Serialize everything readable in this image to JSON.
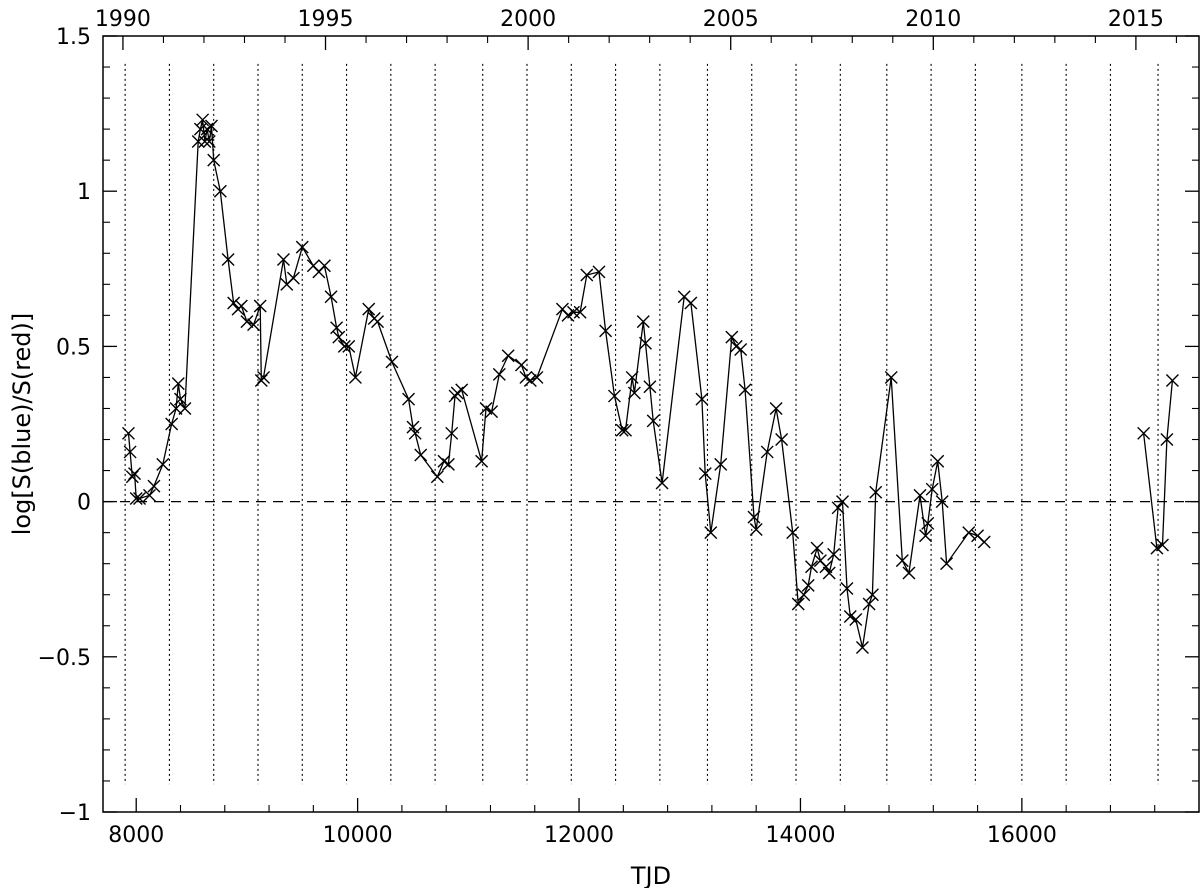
{
  "chart_data": {
    "type": "line",
    "xlabel": "TJD",
    "ylabel": "log[S(blue)/S(red)]",
    "xlim": [
      7700,
      17600
    ],
    "ylim": [
      -1,
      1.5
    ],
    "x_ticks": [
      8000,
      10000,
      12000,
      14000,
      16000
    ],
    "x_tick_labels": [
      "8000",
      "10000",
      "12000",
      "14000",
      "16000"
    ],
    "y_ticks": [
      -1,
      -0.5,
      0,
      0.5,
      1,
      1.5
    ],
    "y_tick_labels": [
      "−1",
      "−0.5",
      "0",
      "0.5",
      "1",
      "1.5"
    ],
    "top_axis": {
      "ticks": [
        7880,
        9710,
        11540,
        13370,
        15200,
        17030
      ],
      "labels": [
        "1990",
        "1995",
        "2000",
        "2005",
        "2010",
        "2015"
      ]
    },
    "reference_line_y": 0,
    "vertical_lines_x": [
      7900,
      8300,
      8700,
      9100,
      9500,
      9900,
      10300,
      10700,
      11130,
      11530,
      11930,
      12330,
      12730,
      13160,
      13560,
      13960,
      14360,
      14780,
      15180,
      15580,
      16000,
      16400,
      16800,
      17230
    ],
    "series": [
      {
        "segments": [
          [
            [
              7930,
              0.22
            ],
            [
              7945,
              0.16
            ],
            [
              7965,
              0.08
            ],
            [
              7985,
              0.09
            ],
            [
              8000,
              0.01
            ],
            [
              8030,
              0.01
            ],
            [
              8120,
              0.02
            ],
            [
              8160,
              0.05
            ],
            [
              8240,
              0.12
            ],
            [
              8320,
              0.25
            ],
            [
              8360,
              0.3
            ],
            [
              8380,
              0.38
            ],
            [
              8400,
              0.33
            ],
            [
              8440,
              0.3
            ],
            [
              8560,
              1.16
            ],
            [
              8580,
              1.2
            ],
            [
              8600,
              1.23
            ],
            [
              8620,
              1.16
            ],
            [
              8640,
              1.2
            ],
            [
              8660,
              1.16
            ],
            [
              8680,
              1.21
            ],
            [
              8700,
              1.1
            ],
            [
              8760,
              1.0
            ],
            [
              8830,
              0.78
            ],
            [
              8880,
              0.64
            ],
            [
              8920,
              0.62
            ],
            [
              8950,
              0.63
            ],
            [
              9000,
              0.58
            ],
            [
              9060,
              0.57
            ],
            [
              9120,
              0.63
            ],
            [
              9130,
              0.39
            ],
            [
              9150,
              0.4
            ],
            [
              9330,
              0.78
            ],
            [
              9360,
              0.7
            ],
            [
              9420,
              0.72
            ],
            [
              9500,
              0.82
            ],
            [
              9600,
              0.76
            ],
            [
              9650,
              0.74
            ],
            [
              9700,
              0.76
            ],
            [
              9760,
              0.66
            ],
            [
              9810,
              0.56
            ],
            [
              9830,
              0.53
            ],
            [
              9880,
              0.5
            ],
            [
              9920,
              0.5
            ],
            [
              9980,
              0.4
            ],
            [
              10100,
              0.62
            ],
            [
              10150,
              0.59
            ],
            [
              10180,
              0.58
            ],
            [
              10310,
              0.45
            ],
            [
              10460,
              0.33
            ],
            [
              10500,
              0.24
            ],
            [
              10520,
              0.22
            ],
            [
              10570,
              0.15
            ],
            [
              10720,
              0.08
            ],
            [
              10780,
              0.13
            ],
            [
              10820,
              0.12
            ],
            [
              10850,
              0.22
            ],
            [
              10880,
              0.34
            ],
            [
              10900,
              0.35
            ],
            [
              10940,
              0.36
            ],
            [
              11120,
              0.13
            ],
            [
              11160,
              0.3
            ],
            [
              11210,
              0.29
            ],
            [
              11280,
              0.41
            ],
            [
              11360,
              0.47
            ],
            [
              11480,
              0.44
            ],
            [
              11520,
              0.4
            ],
            [
              11560,
              0.39
            ],
            [
              11620,
              0.4
            ],
            [
              11850,
              0.62
            ],
            [
              11900,
              0.6
            ],
            [
              11950,
              0.61
            ],
            [
              12010,
              0.61
            ],
            [
              12070,
              0.73
            ],
            [
              12180,
              0.74
            ],
            [
              12240,
              0.55
            ],
            [
              12320,
              0.34
            ],
            [
              12390,
              0.23
            ],
            [
              12420,
              0.23
            ],
            [
              12480,
              0.4
            ],
            [
              12500,
              0.35
            ],
            [
              12580,
              0.58
            ],
            [
              12600,
              0.51
            ],
            [
              12640,
              0.37
            ],
            [
              12670,
              0.26
            ],
            [
              12750,
              0.06
            ],
            [
              12950,
              0.66
            ],
            [
              13010,
              0.64
            ],
            [
              13110,
              0.33
            ],
            [
              13140,
              0.09
            ],
            [
              13190,
              -0.1
            ],
            [
              13280,
              0.12
            ],
            [
              13380,
              0.53
            ],
            [
              13420,
              0.5
            ],
            [
              13460,
              0.49
            ],
            [
              13500,
              0.36
            ],
            [
              13580,
              -0.05
            ],
            [
              13600,
              -0.09
            ],
            [
              13700,
              0.16
            ],
            [
              13780,
              0.3
            ],
            [
              13830,
              0.2
            ],
            [
              13930,
              -0.1
            ],
            [
              13980,
              -0.33
            ],
            [
              14030,
              -0.3
            ],
            [
              14070,
              -0.27
            ],
            [
              14100,
              -0.21
            ],
            [
              14150,
              -0.15
            ],
            [
              14180,
              -0.19
            ],
            [
              14230,
              -0.21
            ],
            [
              14260,
              -0.23
            ],
            [
              14300,
              -0.17
            ],
            [
              14340,
              -0.02
            ],
            [
              14380,
              0.0
            ],
            [
              14420,
              -0.28
            ],
            [
              14450,
              -0.37
            ],
            [
              14500,
              -0.38
            ],
            [
              14560,
              -0.47
            ],
            [
              14620,
              -0.33
            ],
            [
              14650,
              -0.3
            ],
            [
              14680,
              0.03
            ],
            [
              14820,
              0.4
            ],
            [
              14920,
              -0.19
            ],
            [
              14980,
              -0.23
            ],
            [
              15080,
              0.02
            ],
            [
              15130,
              -0.11
            ],
            [
              15150,
              -0.07
            ],
            [
              15190,
              0.04
            ],
            [
              15240,
              0.13
            ],
            [
              15280,
              0.0
            ],
            [
              15320,
              -0.2
            ],
            [
              15520,
              -0.1
            ],
            [
              15600,
              -0.11
            ],
            [
              15660,
              -0.13
            ]
          ],
          [
            [
              17100,
              0.22
            ],
            [
              17220,
              -0.15
            ],
            [
              17270,
              -0.14
            ],
            [
              17310,
              0.2
            ],
            [
              17360,
              0.39
            ]
          ]
        ]
      }
    ]
  }
}
